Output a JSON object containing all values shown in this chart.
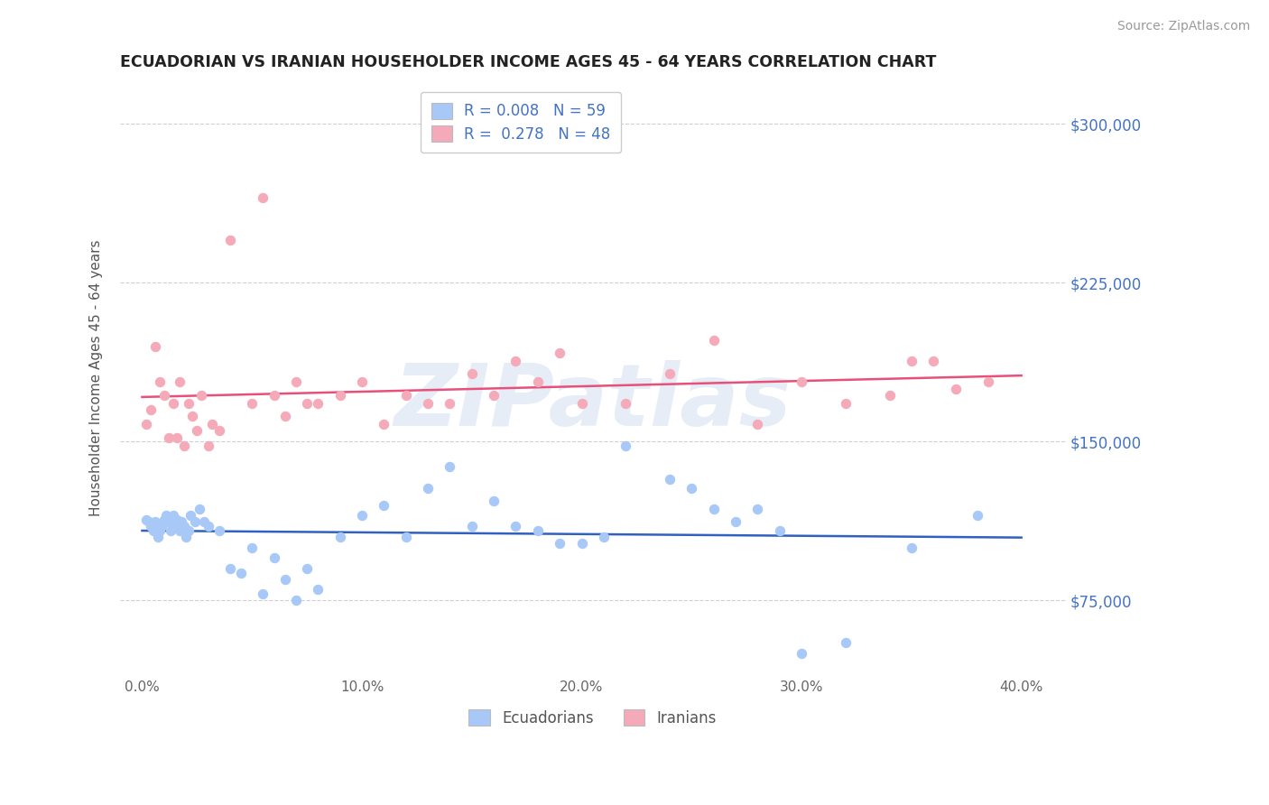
{
  "title": "ECUADORIAN VS IRANIAN HOUSEHOLDER INCOME AGES 45 - 64 YEARS CORRELATION CHART",
  "source": "Source: ZipAtlas.com",
  "ylabel": "Householder Income Ages 45 - 64 years",
  "xlabel_ticks": [
    "0.0%",
    "10.0%",
    "20.0%",
    "30.0%",
    "40.0%"
  ],
  "xlabel_vals": [
    0.0,
    10.0,
    20.0,
    30.0,
    40.0
  ],
  "ytick_vals": [
    75000,
    150000,
    225000,
    300000
  ],
  "ytick_labels": [
    "$75,000",
    "$150,000",
    "$225,000",
    "$300,000"
  ],
  "xmin": -1.0,
  "xmax": 42.0,
  "ymin": 40000,
  "ymax": 320000,
  "watermark": "ZIPatlas",
  "legend_r1": "R = 0.008",
  "legend_n1": "N = 59",
  "legend_r2": "R = 0.278",
  "legend_n2": "N = 48",
  "ecuadorian_color": "#a8c8f8",
  "iranian_color": "#f5aaba",
  "ecuadorian_line_color": "#3060c0",
  "iranian_line_color": "#e8507a",
  "ecu_x": [
    0.2,
    0.3,
    0.4,
    0.5,
    0.6,
    0.7,
    0.8,
    0.9,
    1.0,
    1.1,
    1.2,
    1.3,
    1.4,
    1.5,
    1.6,
    1.7,
    1.8,
    1.9,
    2.0,
    2.1,
    2.2,
    2.4,
    2.6,
    2.8,
    3.0,
    3.5,
    4.0,
    4.5,
    5.0,
    5.5,
    6.0,
    6.5,
    7.0,
    7.5,
    8.0,
    9.0,
    10.0,
    11.0,
    12.0,
    13.0,
    14.0,
    15.0,
    16.0,
    17.0,
    18.0,
    19.0,
    20.0,
    21.0,
    22.0,
    24.0,
    25.0,
    26.0,
    27.0,
    28.0,
    29.0,
    30.0,
    32.0,
    35.0,
    38.0
  ],
  "ecu_y": [
    113000,
    112000,
    110000,
    108000,
    112000,
    105000,
    108000,
    110000,
    113000,
    115000,
    112000,
    108000,
    115000,
    110000,
    113000,
    108000,
    112000,
    110000,
    105000,
    108000,
    115000,
    112000,
    118000,
    112000,
    110000,
    108000,
    90000,
    88000,
    100000,
    78000,
    95000,
    85000,
    75000,
    90000,
    80000,
    105000,
    115000,
    120000,
    105000,
    128000,
    138000,
    110000,
    122000,
    110000,
    108000,
    102000,
    102000,
    105000,
    148000,
    132000,
    128000,
    118000,
    112000,
    118000,
    108000,
    50000,
    55000,
    100000,
    115000
  ],
  "ira_x": [
    0.2,
    0.4,
    0.6,
    0.8,
    1.0,
    1.2,
    1.4,
    1.6,
    1.7,
    1.9,
    2.1,
    2.3,
    2.5,
    2.7,
    3.0,
    3.2,
    3.5,
    4.0,
    5.0,
    5.5,
    6.0,
    6.5,
    7.0,
    7.5,
    8.0,
    9.0,
    10.0,
    11.0,
    12.0,
    13.0,
    14.0,
    15.0,
    16.0,
    17.0,
    18.0,
    19.0,
    20.0,
    22.0,
    24.0,
    26.0,
    28.0,
    30.0,
    32.0,
    34.0,
    35.0,
    36.0,
    37.0,
    38.5
  ],
  "ira_y": [
    158000,
    165000,
    195000,
    178000,
    172000,
    152000,
    168000,
    152000,
    178000,
    148000,
    168000,
    162000,
    155000,
    172000,
    148000,
    158000,
    155000,
    245000,
    168000,
    265000,
    172000,
    162000,
    178000,
    168000,
    168000,
    172000,
    178000,
    158000,
    172000,
    168000,
    168000,
    182000,
    172000,
    188000,
    178000,
    192000,
    168000,
    168000,
    182000,
    198000,
    158000,
    178000,
    168000,
    172000,
    188000,
    188000,
    175000,
    178000
  ]
}
